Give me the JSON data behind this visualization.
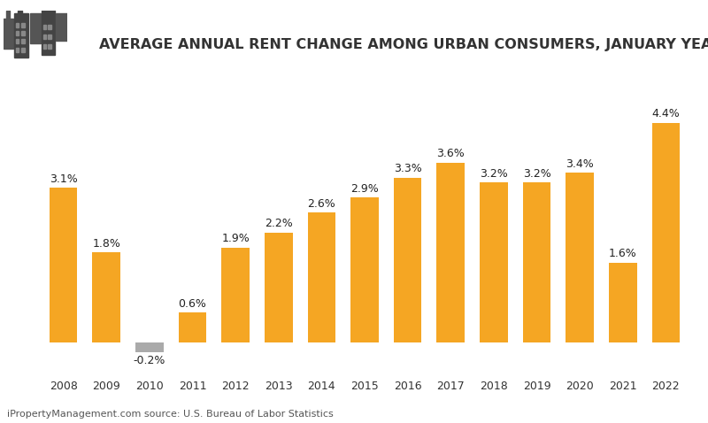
{
  "title": "AVERAGE ANNUAL RENT CHANGE AMONG URBAN CONSUMERS, JANUARY YEAR-OVER-YEAR",
  "years": [
    2008,
    2009,
    2010,
    2011,
    2012,
    2013,
    2014,
    2015,
    2016,
    2017,
    2018,
    2019,
    2020,
    2021,
    2022
  ],
  "values": [
    3.1,
    1.8,
    -0.2,
    0.6,
    1.9,
    2.2,
    2.6,
    2.9,
    3.3,
    3.6,
    3.2,
    3.2,
    3.4,
    1.6,
    4.4
  ],
  "bar_color_positive": "#F5A623",
  "bar_color_negative": "#AAAAAA",
  "background_color": "#FFFFFF",
  "title_fontsize": 11.5,
  "label_fontsize": 9,
  "tick_fontsize": 9,
  "footer_text": "iPropertyManagement.com source: U.S. Bureau of Labor Statistics",
  "footer_fontsize": 8,
  "ylim_min": -0.6,
  "ylim_max": 5.5
}
